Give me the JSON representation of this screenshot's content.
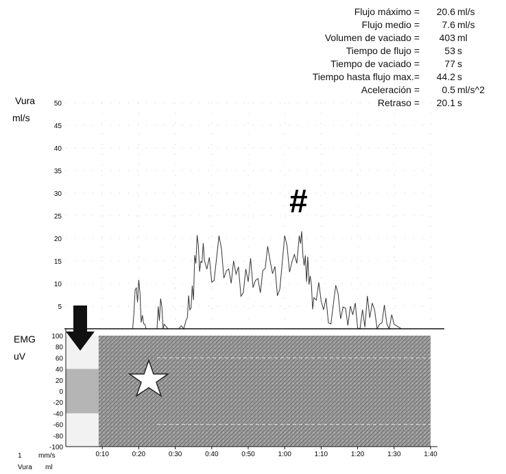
{
  "stats": [
    {
      "label": "Flujo máximo =",
      "value": "20.6",
      "unit": "ml/s"
    },
    {
      "label": "Flujo medio =",
      "value": "7.6",
      "unit": "ml/s"
    },
    {
      "label": "Volumen de vaciado =",
      "value": "403",
      "unit": "ml"
    },
    {
      "label": "Tiempo de flujo =",
      "value": "53",
      "unit": "s"
    },
    {
      "label": "Tiempo de vaciado =",
      "value": "77",
      "unit": "s"
    },
    {
      "label": "Tiempo hasta flujo max.=",
      "value": "44.2",
      "unit": "s"
    },
    {
      "label": "Aceleración =",
      "value": "0.5",
      "unit": "ml/s^2"
    },
    {
      "label": "Retraso =",
      "value": "20.1",
      "unit": "s"
    }
  ],
  "markers": {
    "hash": "#"
  },
  "chart_data": [
    {
      "type": "line",
      "name": "uroflow",
      "ylabel": "Vura",
      "yunit": "ml/s",
      "ylim": [
        0,
        50
      ],
      "yticks": [
        "50",
        "45",
        "40",
        "35",
        "30",
        "25",
        "20",
        "15",
        "10",
        "5"
      ],
      "xlim": [
        0,
        100
      ],
      "x": [
        0,
        18,
        19,
        20,
        21,
        22,
        25,
        26,
        27,
        28,
        29,
        30,
        31,
        33,
        34,
        35,
        36,
        37,
        38,
        40,
        42,
        44,
        46,
        48,
        50,
        52,
        54,
        56,
        58,
        60,
        62,
        64,
        65,
        66,
        67,
        68,
        70,
        72,
        74,
        76,
        78,
        80,
        82,
        84,
        86,
        88,
        90,
        92
      ],
      "y": [
        0,
        0,
        5,
        9,
        3,
        0,
        0,
        4,
        1,
        0,
        0,
        0,
        0,
        2,
        6,
        10,
        18,
        14,
        16,
        13,
        17,
        11,
        15,
        9,
        14,
        8,
        12,
        16,
        10,
        17,
        13,
        20.6,
        18,
        14,
        9,
        6,
        7,
        4,
        6,
        3,
        5,
        2,
        4,
        3,
        1,
        2,
        1,
        0
      ]
    },
    {
      "type": "area",
      "name": "emg",
      "ylabel": "EMG",
      "yunit": "uV",
      "ylim": [
        -100,
        100
      ],
      "yticks": [
        "100",
        "80",
        "60",
        "40",
        "20",
        "0",
        "-20",
        "-40",
        "-60",
        "-80",
        "-100"
      ],
      "xlim": [
        0,
        100
      ],
      "xticks": [
        "0:10",
        "0:20",
        "0:30",
        "0:40",
        "0:50",
        "1:00",
        "1:10",
        "1:20",
        "1:30",
        "1:40"
      ],
      "xaxis_units": [
        "mm/s",
        "ml"
      ],
      "xaxis_prefix": "1",
      "xaxis_series": "Vura",
      "band_upper": 100,
      "band_lower": -100,
      "baseline_amplitude": 40
    }
  ]
}
